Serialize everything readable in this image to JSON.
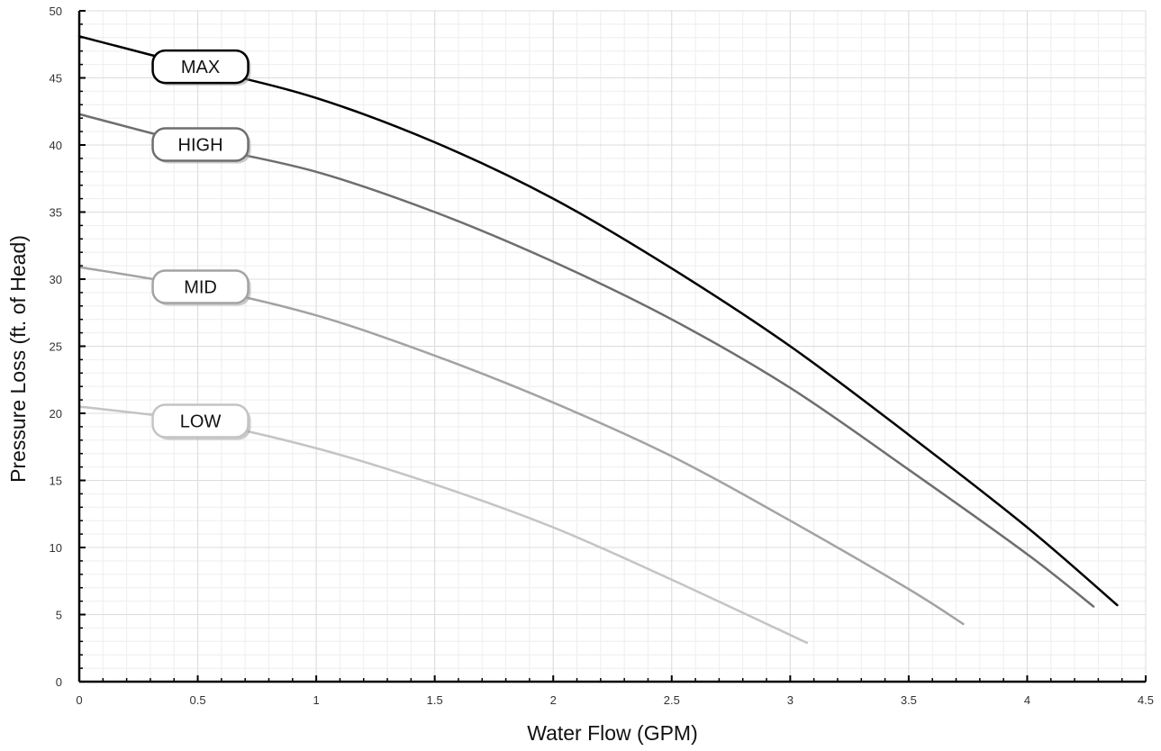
{
  "chart_data": {
    "type": "line",
    "title": "",
    "xlabel": "Water Flow (GPM)",
    "ylabel": "Pressure Loss (ft. of Head)",
    "xlim": [
      0,
      4.5
    ],
    "ylim": [
      0,
      50
    ],
    "x_ticks": [
      "0",
      "0.5",
      "1",
      "1.5",
      "2",
      "2.5",
      "3",
      "3.5",
      "4",
      "4.5"
    ],
    "y_ticks": [
      "0",
      "5",
      "10",
      "15",
      "20",
      "25",
      "30",
      "35",
      "40",
      "45",
      "50"
    ],
    "grid": true,
    "legend": "inline labels",
    "series": [
      {
        "name": "MAX",
        "color": "#000000",
        "points": [
          [
            0,
            48.1
          ],
          [
            0.5,
            45.8
          ],
          [
            1,
            43.5
          ],
          [
            1.5,
            40.2
          ],
          [
            2,
            36.0
          ],
          [
            2.5,
            30.8
          ],
          [
            3,
            25.0
          ],
          [
            3.5,
            18.4
          ],
          [
            4,
            11.5
          ],
          [
            4.38,
            5.7
          ]
        ]
      },
      {
        "name": "HIGH",
        "color": "#6e6e6e",
        "points": [
          [
            0,
            42.3
          ],
          [
            0.5,
            40.0
          ],
          [
            1,
            38.0
          ],
          [
            1.5,
            35.0
          ],
          [
            2,
            31.3
          ],
          [
            2.5,
            27.0
          ],
          [
            3,
            21.9
          ],
          [
            3.5,
            15.8
          ],
          [
            4,
            9.5
          ],
          [
            4.28,
            5.6
          ]
        ]
      },
      {
        "name": "MID",
        "color": "#a3a3a3",
        "points": [
          [
            0,
            30.9
          ],
          [
            0.5,
            29.4
          ],
          [
            1,
            27.3
          ],
          [
            1.5,
            24.3
          ],
          [
            2,
            20.8
          ],
          [
            2.5,
            16.8
          ],
          [
            3,
            12.0
          ],
          [
            3.5,
            6.9
          ],
          [
            3.73,
            4.3
          ]
        ]
      },
      {
        "name": "LOW",
        "color": "#c4c4c4",
        "points": [
          [
            0,
            20.5
          ],
          [
            0.5,
            19.4
          ],
          [
            1,
            17.4
          ],
          [
            1.5,
            14.7
          ],
          [
            2,
            11.5
          ],
          [
            2.5,
            7.6
          ],
          [
            3.07,
            2.9
          ]
        ]
      }
    ]
  }
}
